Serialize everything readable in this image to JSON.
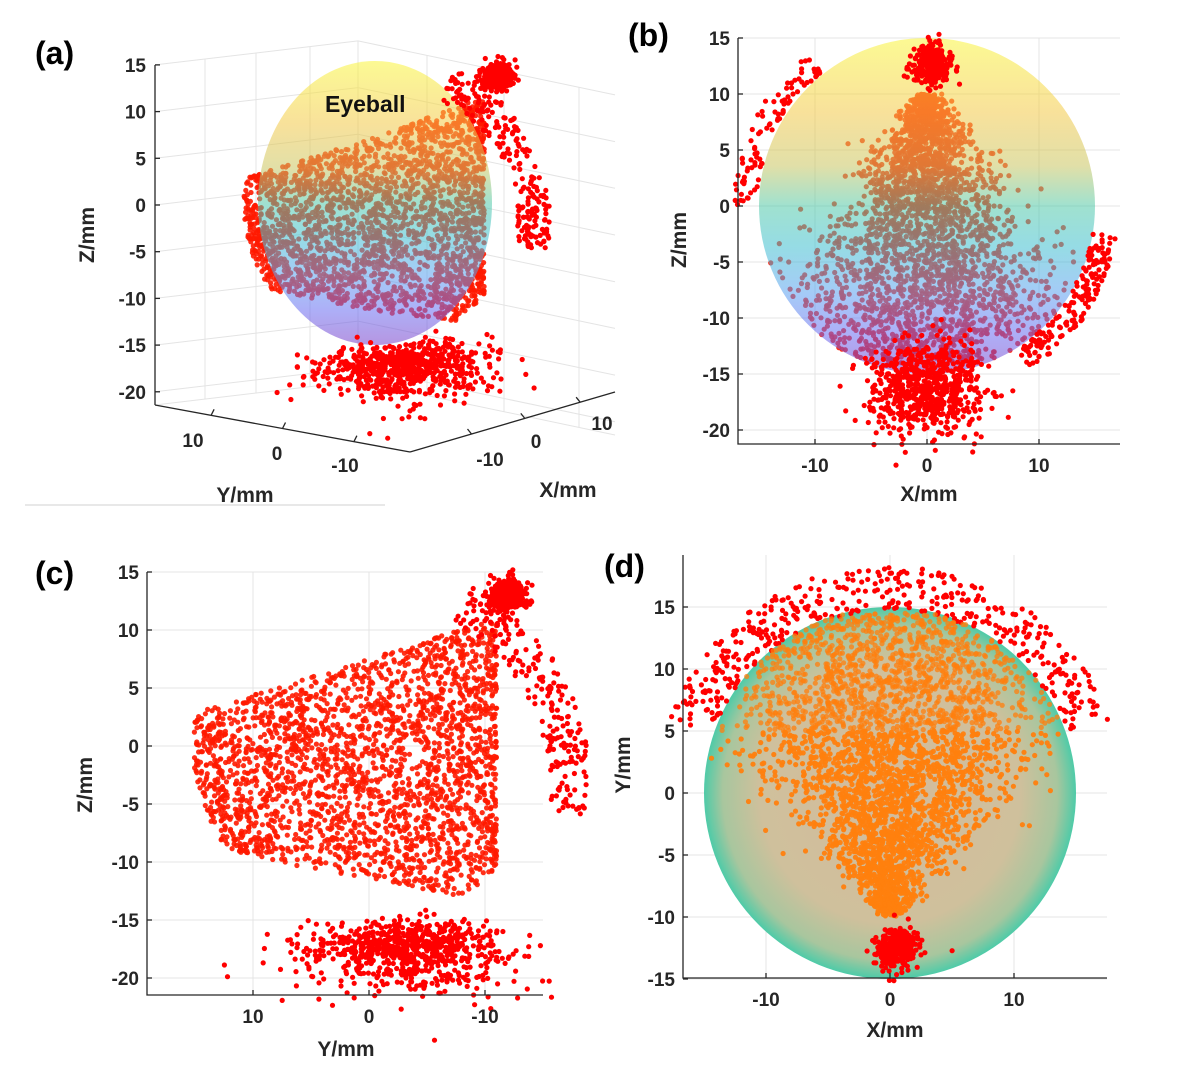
{
  "chart_data": [
    {
      "panel_label": "(a)",
      "type": "scatter3d",
      "annotation": "Eyeball",
      "xlabel": "X/mm",
      "ylabel": "Y/mm",
      "zlabel": "Z/mm",
      "xticks": [
        "-10",
        "0",
        "10"
      ],
      "yticks": [
        "10",
        "0",
        "-10"
      ],
      "zticks": [
        "15",
        "10",
        "5",
        "0",
        "-5",
        "-10",
        "-15",
        "-20"
      ],
      "grid": true,
      "sphere_colormap": "parula (by Z)",
      "marker_color": "#ff0000"
    },
    {
      "panel_label": "(b)",
      "type": "scatter",
      "xlabel": "X/mm",
      "ylabel": "Z/mm",
      "xlim": [
        -17,
        17
      ],
      "ylim": [
        -21.3,
        15
      ],
      "xticks": [
        "-10",
        "0",
        "10"
      ],
      "yticks": [
        "15",
        "10",
        "5",
        "0",
        "-5",
        "-10",
        "-15",
        "-20"
      ],
      "grid": true,
      "sphere_colormap": "parula (by Z)",
      "marker_color": "#ff0000"
    },
    {
      "panel_label": "(c)",
      "type": "scatter",
      "xlabel": "Y/mm",
      "ylabel": "Z/mm",
      "xlim": [
        19,
        -15
      ],
      "x_reversed": true,
      "ylim": [
        -21.3,
        15
      ],
      "xticks": [
        "10",
        "0",
        "-10"
      ],
      "yticks": [
        "15",
        "10",
        "5",
        "0",
        "-5",
        "-10",
        "-15",
        "-20"
      ],
      "grid": true,
      "sphere_colormap": "parula (by Z)",
      "marker_color": "#ff0000"
    },
    {
      "panel_label": "(d)",
      "type": "scatter",
      "xlabel": "X/mm",
      "ylabel": "Y/mm",
      "xlim": [
        -16.8,
        17.5
      ],
      "ylim": [
        -15,
        19.2
      ],
      "xticks": [
        "-10",
        "0",
        "10"
      ],
      "yticks": [
        "15",
        "10",
        "5",
        "0",
        "-5",
        "-10",
        "-15"
      ],
      "grid": true,
      "sphere_color": "#4ecba8",
      "marker_color_inside": "#ff7f0e",
      "marker_color_outside": "#ff0000"
    }
  ]
}
